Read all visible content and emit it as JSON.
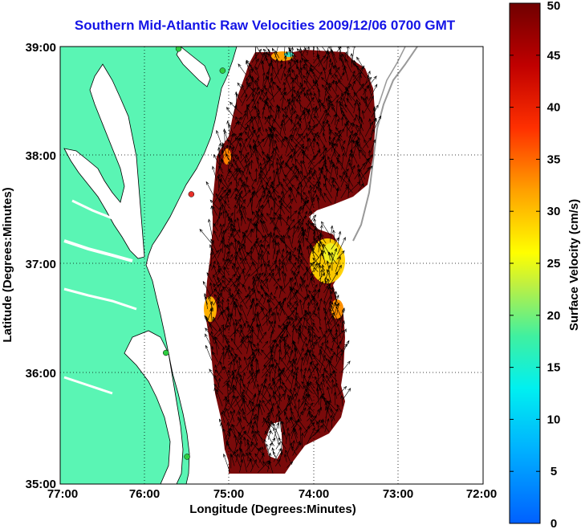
{
  "title": "Southern Mid-Atlantic Raw Velocities 2009/12/06 0700 GMT",
  "xlabel": "Longitude (Degrees:Minutes)",
  "ylabel": "Latitude (Degrees:Minutes)",
  "colorbar_label": "Surface Velocity (cm/s)",
  "x_ticks": [
    "77:00",
    "76:00",
    "75:00",
    "74:00",
    "73:00",
    "72:00"
  ],
  "y_ticks": [
    "39:00",
    "38:00",
    "37:00",
    "36:00",
    "35:00"
  ],
  "colorbar_ticks": [
    "50",
    "45",
    "40",
    "35",
    "30",
    "25",
    "20",
    "15",
    "10",
    "5",
    "0"
  ],
  "colors": {
    "land": "#5af5b4",
    "water": "#ffffff",
    "title": "#1414e6",
    "velocity_high": "#7a0000",
    "velocity_mid": "#ffff00",
    "velocity_low": "#0066ff"
  },
  "chart_data": {
    "type": "heatmap",
    "xlim": [
      -77,
      -72
    ],
    "ylim": [
      35,
      39
    ],
    "colorbar_range": [
      0,
      50
    ],
    "x_ticks_deg": [
      -77,
      -76,
      -75,
      -74,
      -73,
      -72
    ],
    "y_ticks_deg": [
      39,
      38,
      37,
      36,
      35
    ],
    "grid": true,
    "stations": [
      {
        "lon": -75.6,
        "lat": 38.98,
        "color": "#2ecc40"
      },
      {
        "lon": -75.08,
        "lat": 38.78,
        "color": "#2ecc40"
      },
      {
        "lon": -75.45,
        "lat": 37.65,
        "color": "#e8302a"
      },
      {
        "lon": -75.75,
        "lat": 36.2,
        "color": "#2ecc40"
      },
      {
        "lon": -75.5,
        "lat": 35.25,
        "color": "#2ecc40"
      }
    ]
  }
}
